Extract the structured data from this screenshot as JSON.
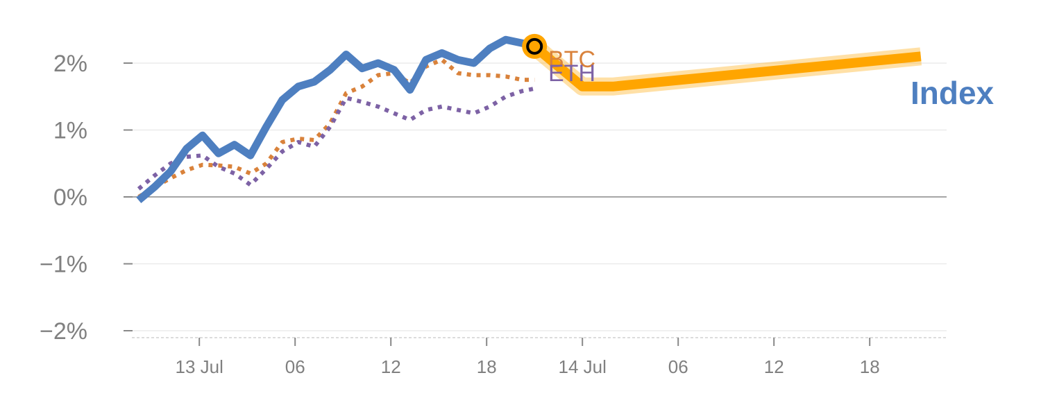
{
  "chart_data": {
    "type": "line",
    "xlabel": "",
    "ylabel": "",
    "y_unit": "%",
    "ylim": [
      -2.05,
      2.5
    ],
    "y_ticks": [
      {
        "value": 2,
        "label": "2%"
      },
      {
        "value": 1,
        "label": "1%"
      },
      {
        "value": 0,
        "label": "0%"
      },
      {
        "value": -1,
        "label": "−1%"
      },
      {
        "value": -2,
        "label": "−2%"
      }
    ],
    "x_ticks": [
      {
        "x": 3,
        "label": "13 Jul"
      },
      {
        "x": 9,
        "label": "06"
      },
      {
        "x": 15,
        "label": "12"
      },
      {
        "x": 21,
        "label": "18"
      },
      {
        "x": 27,
        "label": "14 Jul"
      },
      {
        "x": 33,
        "label": "06"
      },
      {
        "x": 39,
        "label": "12"
      },
      {
        "x": 45,
        "label": "18"
      }
    ],
    "xlim": [
      -1,
      50.3
    ],
    "grid": true,
    "legend": "inline labels",
    "series": [
      {
        "name": "Index",
        "color": "#4e7fc0",
        "style": "solid",
        "x": [
          -0.8,
          0.2,
          1.2,
          2.2,
          3.2,
          4.2,
          5.2,
          6.2,
          7.2,
          8.2,
          9.2,
          10.2,
          11.2,
          12.2,
          13.2,
          14.2,
          15.2,
          16.2,
          17.2,
          18.2,
          19.2,
          20.2,
          21.2,
          22.2,
          23.2,
          24.0
        ],
        "values": [
          -0.05,
          0.15,
          0.38,
          0.72,
          0.92,
          0.65,
          0.78,
          0.62,
          1.05,
          1.45,
          1.65,
          1.72,
          1.9,
          2.13,
          1.92,
          2.0,
          1.9,
          1.6,
          2.05,
          2.15,
          2.05,
          2.0,
          2.22,
          2.35,
          2.3,
          2.25
        ]
      },
      {
        "name": "BTC",
        "color": "#d9823b",
        "style": "dotted",
        "x": [
          -0.8,
          0.2,
          1.2,
          2.2,
          3.2,
          4.2,
          5.2,
          6.2,
          7.2,
          8.2,
          9.2,
          10.2,
          11.2,
          12.2,
          13.2,
          14.2,
          15.2,
          16.2,
          17.2,
          18.2,
          19.2,
          20.2,
          21.2,
          22.2,
          23.2,
          24.0
        ],
        "values": [
          0.0,
          0.15,
          0.28,
          0.4,
          0.48,
          0.47,
          0.45,
          0.35,
          0.5,
          0.82,
          0.87,
          0.85,
          1.1,
          1.55,
          1.65,
          1.82,
          1.85,
          1.7,
          1.95,
          2.05,
          1.85,
          1.82,
          1.82,
          1.8,
          1.75,
          1.75
        ]
      },
      {
        "name": "ETH",
        "color": "#7d62a5",
        "style": "dotted",
        "x": [
          -0.8,
          0.2,
          1.2,
          2.2,
          3.2,
          4.2,
          5.2,
          6.2,
          7.2,
          8.2,
          9.2,
          10.2,
          11.2,
          12.2,
          13.2,
          14.2,
          15.2,
          16.2,
          17.2,
          18.2,
          19.2,
          20.2,
          21.2,
          22.2,
          23.2,
          24.0
        ],
        "values": [
          0.12,
          0.32,
          0.5,
          0.6,
          0.62,
          0.45,
          0.35,
          0.18,
          0.42,
          0.68,
          0.82,
          0.75,
          1.05,
          1.48,
          1.42,
          1.35,
          1.25,
          1.15,
          1.3,
          1.35,
          1.3,
          1.25,
          1.35,
          1.5,
          1.58,
          1.62
        ]
      }
    ],
    "projection": {
      "color": "#ffa500",
      "x": [
        24.0,
        27.0,
        28.9,
        48.2
      ],
      "values": [
        2.25,
        1.65,
        1.65,
        2.1
      ]
    },
    "marker": {
      "x": 24.0,
      "value": 2.25,
      "fill": "#ffa500",
      "ring": "#000000"
    },
    "labels": {
      "BTC": "BTC",
      "ETH": "ETH",
      "Index": "Index"
    }
  }
}
